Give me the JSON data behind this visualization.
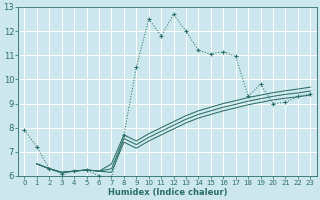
{
  "xlabel": "Humidex (Indice chaleur)",
  "bg_color": "#cce8ee",
  "grid_color": "#ffffff",
  "line_color": "#2a6e65",
  "xlim": [
    -0.5,
    23.5
  ],
  "ylim": [
    6,
    13
  ],
  "xticks": [
    0,
    1,
    2,
    3,
    4,
    5,
    6,
    7,
    8,
    9,
    10,
    11,
    12,
    13,
    14,
    15,
    16,
    17,
    18,
    19,
    20,
    21,
    22,
    23
  ],
  "yticks": [
    6,
    7,
    8,
    9,
    10,
    11,
    12,
    13
  ],
  "dotted_x": [
    0,
    1,
    2,
    3,
    4,
    5,
    6,
    7,
    8,
    9,
    10,
    11,
    12,
    13,
    14,
    15,
    16,
    17,
    18,
    19,
    20,
    21,
    22,
    23
  ],
  "dotted_y": [
    7.9,
    7.2,
    6.3,
    6.1,
    6.2,
    6.25,
    6.0,
    5.95,
    7.7,
    10.5,
    12.5,
    11.8,
    12.7,
    12.0,
    11.2,
    11.05,
    11.15,
    10.95,
    9.3,
    9.8,
    9.0,
    9.05,
    9.3,
    9.4
  ],
  "line1_x": [
    1,
    2,
    3,
    4,
    5,
    6,
    7,
    8,
    9,
    10,
    11,
    12,
    13,
    14,
    15,
    16,
    17,
    18,
    19,
    20,
    21,
    22,
    23
  ],
  "line1_y": [
    6.5,
    6.3,
    6.15,
    6.2,
    6.25,
    6.2,
    6.15,
    7.4,
    7.15,
    7.45,
    7.7,
    7.95,
    8.2,
    8.4,
    8.55,
    8.7,
    8.82,
    8.95,
    9.05,
    9.15,
    9.22,
    9.28,
    9.35
  ],
  "line2_x": [
    1,
    2,
    3,
    4,
    5,
    6,
    7,
    8,
    9,
    10,
    11,
    12,
    13,
    14,
    15,
    16,
    17,
    18,
    19,
    20,
    21,
    22,
    23
  ],
  "line2_y": [
    6.5,
    6.3,
    6.15,
    6.2,
    6.25,
    6.2,
    6.3,
    7.55,
    7.3,
    7.6,
    7.85,
    8.1,
    8.35,
    8.55,
    8.7,
    8.85,
    8.97,
    9.1,
    9.2,
    9.3,
    9.38,
    9.44,
    9.52
  ],
  "line3_x": [
    1,
    2,
    3,
    4,
    5,
    6,
    7,
    8,
    9,
    10,
    11,
    12,
    13,
    14,
    15,
    16,
    17,
    18,
    19,
    20,
    21,
    22,
    23
  ],
  "line3_y": [
    6.5,
    6.3,
    6.15,
    6.2,
    6.25,
    6.2,
    6.5,
    7.7,
    7.45,
    7.75,
    8.0,
    8.25,
    8.5,
    8.7,
    8.85,
    9.0,
    9.12,
    9.25,
    9.35,
    9.45,
    9.53,
    9.6,
    9.68
  ]
}
